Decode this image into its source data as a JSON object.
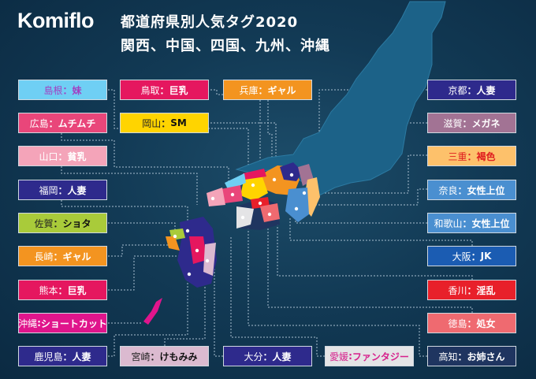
{
  "logo": "Komiflo",
  "title": "都道府県別人気タグ2020",
  "subtitle": "関西、中国、四国、九州、沖縄",
  "labels": [
    {
      "pref": "島根",
      "sep": "：",
      "tag": "妹",
      "bg": "#6fcff4",
      "prefColor": "#a23fc2",
      "tagColor": "#a23fc2"
    },
    {
      "pref": "広島",
      "sep": "：",
      "tag": "ムチムチ",
      "bg": "#e9467a",
      "prefColor": "#ffffff",
      "tagColor": "#ffffff"
    },
    {
      "pref": "山口",
      "sep": "：",
      "tag": "貧乳",
      "bg": "#f4a4b9",
      "prefColor": "#ffffff",
      "tagColor": "#ffffff"
    },
    {
      "pref": "福岡",
      "sep": "：",
      "tag": "人妻",
      "bg": "#2e2a8c",
      "prefColor": "#ffffff",
      "tagColor": "#ffffff"
    },
    {
      "pref": "佐賀",
      "sep": "：",
      "tag": "ショタ",
      "bg": "#a9cb3a",
      "prefColor": "#222222",
      "tagColor": "#111111"
    },
    {
      "pref": "長崎",
      "sep": "：",
      "tag": "ギャル",
      "bg": "#f39420",
      "prefColor": "#ffffff",
      "tagColor": "#ffffff"
    },
    {
      "pref": "熊本",
      "sep": "：",
      "tag": "巨乳",
      "bg": "#e5175f",
      "prefColor": "#ffffff",
      "tagColor": "#ffffff"
    },
    {
      "pref": "沖縄",
      "sep": ":",
      "tag": "ショートカット",
      "bg": "#e0158c",
      "prefColor": "#ffffff",
      "tagColor": "#ffffff"
    },
    {
      "pref": "鹿児島",
      "sep": "：",
      "tag": "人妻",
      "bg": "#2e2a8c",
      "prefColor": "#ffffff",
      "tagColor": "#ffffff"
    },
    {
      "pref": "鳥取",
      "sep": "：",
      "tag": "巨乳",
      "bg": "#e5175f",
      "prefColor": "#ffffff",
      "tagColor": "#ffffff"
    },
    {
      "pref": "岡山",
      "sep": "：",
      "tag": "SM",
      "bg": "#ffd400",
      "prefColor": "#222222",
      "tagColor": "#111111"
    },
    {
      "pref": "宮崎",
      "sep": "：",
      "tag": "けもみみ",
      "bg": "#dbbad0",
      "prefColor": "#222222",
      "tagColor": "#111111"
    },
    {
      "pref": "兵庫",
      "sep": "：",
      "tag": "ギャル",
      "bg": "#f39420",
      "prefColor": "#ffffff",
      "tagColor": "#ffffff"
    },
    {
      "pref": "大分",
      "sep": "：",
      "tag": "人妻",
      "bg": "#2e2a8c",
      "prefColor": "#ffffff",
      "tagColor": "#ffffff"
    },
    {
      "pref": "愛媛",
      "sep": ":",
      "tag": "ファンタジー",
      "bg": "#e4e4e6",
      "prefColor": "#d6218c",
      "tagColor": "#d6218c"
    },
    {
      "pref": "京都",
      "sep": "：",
      "tag": "人妻",
      "bg": "#2e2a8c",
      "prefColor": "#ffffff",
      "tagColor": "#ffffff"
    },
    {
      "pref": "滋賀",
      "sep": "：",
      "tag": "メガネ",
      "bg": "#a27394",
      "prefColor": "#ffffff",
      "tagColor": "#ffffff"
    },
    {
      "pref": "三重",
      "sep": "：",
      "tag": "褐色",
      "bg": "#fdc16b",
      "prefColor": "#e02020",
      "tagColor": "#e02020"
    },
    {
      "pref": "奈良",
      "sep": "：",
      "tag": "女性上位",
      "bg": "#4a8fd0",
      "prefColor": "#ffffff",
      "tagColor": "#ffffff"
    },
    {
      "pref": "和歌山",
      "sep": "：",
      "tag": "女性上位",
      "bg": "#4a8fd0",
      "prefColor": "#ffffff",
      "tagColor": "#ffffff"
    },
    {
      "pref": "大阪",
      "sep": "：",
      "tag": "JK",
      "bg": "#1b5cb2",
      "prefColor": "#ffffff",
      "tagColor": "#ffffff"
    },
    {
      "pref": "香川",
      "sep": "：",
      "tag": "淫乱",
      "bg": "#e8202a",
      "prefColor": "#ffffff",
      "tagColor": "#ffffff"
    },
    {
      "pref": "徳島",
      "sep": "：",
      "tag": "処女",
      "bg": "#ef6a70",
      "prefColor": "#ffffff",
      "tagColor": "#ffffff"
    },
    {
      "pref": "高知",
      "sep": "：",
      "tag": "お姉さん",
      "bg": "#1f3560",
      "prefColor": "#ffffff",
      "tagColor": "#ffffff"
    }
  ]
}
